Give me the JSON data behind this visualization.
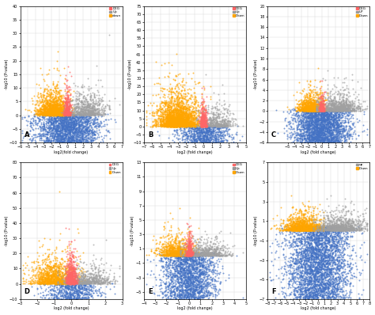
{
  "panels": [
    {
      "label": "A",
      "xlim": [
        -6,
        7
      ],
      "ylim": [
        -10,
        40
      ],
      "xticks": [
        -6,
        -5,
        -4,
        -3,
        -2,
        -1,
        0,
        1,
        2,
        3,
        4,
        5,
        6,
        7
      ],
      "yticks": [
        -10,
        -5,
        0,
        5,
        10,
        15,
        20,
        25,
        30,
        35,
        40
      ],
      "xlabel": "log2(fold change)",
      "ylabel": "-log10 (P-value)",
      "legend": [
        "DEG",
        "Up",
        "down"
      ],
      "legend_colors": [
        "#FF6666",
        "#999999",
        "#FFA500"
      ],
      "has_red": true,
      "n_blue": 2000,
      "n_orange": 1500,
      "n_gray": 700,
      "n_red": 300,
      "blue_x_std": 2.0,
      "blue_y_min": -10,
      "blue_y_max": 0.5,
      "orange_x_mean": -1.8,
      "orange_x_std": 1.0,
      "orange_y_scale": 8,
      "orange_y_max": 38,
      "gray_x_mean": 2.5,
      "gray_x_std": 1.2,
      "gray_y_scale": 8,
      "gray_y_max": 38,
      "red_x_std": 0.25,
      "red_y_scale": 6,
      "red_y_max": 18
    },
    {
      "label": "B",
      "xlim": [
        -7,
        5
      ],
      "ylim": [
        -10,
        75
      ],
      "xticks": [
        -7,
        -6,
        -5,
        -4,
        -3,
        -2,
        -1,
        0,
        1,
        2,
        3,
        4,
        5
      ],
      "yticks": [
        -10,
        -5,
        0,
        5,
        10,
        15,
        20,
        25,
        30,
        35,
        40,
        45,
        50,
        55,
        60,
        65,
        70,
        75
      ],
      "xlabel": "log2 (fold change)",
      "ylabel": "-log10 (P-value)",
      "legend": [
        "DEG",
        "Up",
        "Down"
      ],
      "legend_colors": [
        "#FF6666",
        "#999999",
        "#FFA500"
      ],
      "has_red": true,
      "n_blue": 800,
      "n_orange": 2500,
      "n_gray": 500,
      "n_red": 400,
      "blue_x_std": 1.5,
      "blue_y_min": -10,
      "blue_y_max": 0.5,
      "orange_x_mean": -3.0,
      "orange_x_std": 1.2,
      "orange_y_scale": 18,
      "orange_y_max": 72,
      "gray_x_mean": 1.5,
      "gray_x_std": 1.0,
      "gray_y_scale": 10,
      "gray_y_max": 50,
      "red_x_std": 0.2,
      "red_y_scale": 8,
      "red_y_max": 30
    },
    {
      "label": "C",
      "xlim": [
        -8,
        7
      ],
      "ylim": [
        -6,
        20
      ],
      "xticks": [
        -5,
        -4,
        -3,
        -2,
        -1,
        0,
        1,
        2,
        3,
        4,
        5,
        6,
        7
      ],
      "yticks": [
        -6,
        -4,
        -2,
        0,
        2,
        4,
        6,
        8,
        10,
        12,
        14,
        16,
        18,
        20
      ],
      "xlabel": "log2 (fold change)",
      "ylabel": "-log10 (P-value)",
      "legend": [
        "DEG",
        "UP",
        "Down"
      ],
      "legend_colors": [
        "#FF6666",
        "#999999",
        "#FFA500"
      ],
      "has_red": true,
      "n_blue": 2500,
      "n_orange": 1000,
      "n_gray": 900,
      "n_red": 200,
      "blue_x_std": 2.0,
      "blue_y_min": -6,
      "blue_y_max": 0.5,
      "orange_x_mean": -1.5,
      "orange_x_std": 1.0,
      "orange_y_scale": 3,
      "orange_y_max": 18,
      "gray_x_mean": 2.5,
      "gray_x_std": 1.5,
      "gray_y_scale": 3,
      "gray_y_max": 18,
      "red_x_std": 0.2,
      "red_y_scale": 2,
      "red_y_max": 8
    },
    {
      "label": "D",
      "xlim": [
        -3,
        3
      ],
      "ylim": [
        -10,
        80
      ],
      "xticks": [
        -3,
        -2,
        -1,
        0,
        1,
        2,
        3
      ],
      "yticks": [
        -10,
        0,
        10,
        20,
        30,
        40,
        50,
        60,
        70,
        80
      ],
      "xlabel": "log2 (fold change)",
      "ylabel": "-log10 (P-value)",
      "legend": [
        "DEG",
        "Up",
        "Down"
      ],
      "legend_colors": [
        "#FF6666",
        "#999999",
        "#FFA500"
      ],
      "has_red": true,
      "n_blue": 600,
      "n_orange": 1200,
      "n_gray": 600,
      "n_red": 600,
      "blue_x_std": 0.8,
      "blue_y_min": -10,
      "blue_y_max": 0.5,
      "orange_x_mean": -1.0,
      "orange_x_std": 0.7,
      "orange_y_scale": 15,
      "orange_y_max": 75,
      "gray_x_mean": 1.0,
      "gray_x_std": 0.7,
      "gray_y_scale": 10,
      "gray_y_max": 55,
      "red_x_std": 0.15,
      "red_y_scale": 12,
      "red_y_max": 50
    },
    {
      "label": "E",
      "xlim": [
        -4,
        5
      ],
      "ylim": [
        -6,
        13
      ],
      "xticks": [
        -4,
        -3,
        -2,
        -1,
        0,
        1,
        2,
        3,
        4,
        5
      ],
      "yticks": [
        -5,
        -3,
        -1,
        1,
        3,
        5,
        7,
        9,
        11,
        13
      ],
      "xlabel": "log2 (fold change)",
      "ylabel": "-log10 (P-value)",
      "legend": [
        "DEG",
        "Up",
        "Down"
      ],
      "legend_colors": [
        "#FF6666",
        "#999999",
        "#FFA500"
      ],
      "has_red": true,
      "n_blue": 2000,
      "n_orange": 800,
      "n_gray": 600,
      "n_red": 300,
      "blue_x_std": 1.2,
      "blue_y_min": -6,
      "blue_y_max": 0.5,
      "orange_x_mean": -1.2,
      "orange_x_std": 0.8,
      "orange_y_scale": 2.5,
      "orange_y_max": 12,
      "gray_x_mean": 1.5,
      "gray_x_std": 1.0,
      "gray_y_scale": 2.0,
      "gray_y_max": 10,
      "red_x_std": 0.15,
      "red_y_scale": 2.0,
      "red_y_max": 7
    },
    {
      "label": "F",
      "xlim": [
        -8,
        8
      ],
      "ylim": [
        -7,
        7
      ],
      "xticks": [
        -8,
        -7,
        -6,
        -5,
        -4,
        -3,
        -2,
        -1,
        0,
        1,
        2,
        3,
        4,
        5,
        6,
        7,
        8
      ],
      "yticks": [
        -7,
        -5,
        -3,
        -1,
        1,
        3,
        5,
        7
      ],
      "xlabel": "log2 (fold change)",
      "ylabel": "-log10 (P-value)",
      "legend": [
        "up",
        "Down"
      ],
      "legend_colors": [
        "#999999",
        "#FFA500"
      ],
      "has_red": false,
      "n_blue": 3500,
      "n_orange": 1200,
      "n_gray": 1000,
      "n_red": 0,
      "blue_x_std": 2.5,
      "blue_y_min": -7,
      "blue_y_max": 0.5,
      "orange_x_mean": -2.5,
      "orange_x_std": 1.5,
      "orange_y_scale": 1.5,
      "orange_y_max": 6.5,
      "gray_x_mean": 3.5,
      "gray_x_std": 1.8,
      "gray_y_scale": 1.5,
      "gray_y_max": 6.5,
      "red_x_std": 0,
      "red_y_scale": 0,
      "red_y_max": 0
    }
  ],
  "colors": {
    "blue": "#4472C4",
    "orange": "#FFA500",
    "gray": "#A0A0A0",
    "red": "#FF6666",
    "background": "#ffffff",
    "grid": "#cccccc"
  },
  "marker_size": 2,
  "alpha": 0.7
}
